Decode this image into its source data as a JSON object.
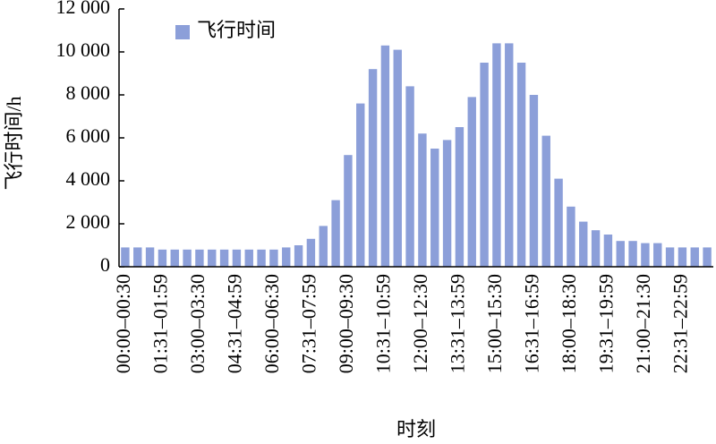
{
  "chart_data": {
    "type": "bar",
    "y_label": "飞行时间/h",
    "x_label": "时刻",
    "categories": [
      "00:00–00:30",
      null,
      null,
      "01:31–01:59",
      null,
      null,
      "03:00–03:30",
      null,
      null,
      "04:31–04:59",
      null,
      null,
      "06:00–06:30",
      null,
      null,
      "07:31–07:59",
      null,
      null,
      "09:00–09:30",
      null,
      null,
      "10:31–10:59",
      null,
      null,
      "12:00–12:30",
      null,
      null,
      "13:31–13:59",
      null,
      null,
      "15:00–15:30",
      null,
      null,
      "16:31–16:59",
      null,
      null,
      "18:00–18:30",
      null,
      null,
      "19:31–19:59",
      null,
      null,
      "21:00–21:30",
      null,
      null,
      "22:31–22:59",
      null,
      null
    ],
    "series": [
      {
        "name": "飞行时间",
        "color": "#8c9fd9",
        "values": [
          900,
          900,
          900,
          800,
          800,
          800,
          800,
          800,
          800,
          800,
          800,
          800,
          800,
          900,
          1000,
          1300,
          1900,
          3100,
          5200,
          7600,
          9200,
          10300,
          10100,
          8400,
          6200,
          5500,
          5900,
          6500,
          7900,
          9500,
          10400,
          10400,
          9500,
          8000,
          6100,
          4100,
          2800,
          2100,
          1700,
          1500,
          1200,
          1200,
          1100,
          1100,
          900,
          900,
          900,
          900
        ]
      }
    ],
    "ylim": [
      0,
      12000
    ],
    "yticks": [
      0,
      {
        "value": 2000,
        "label": "2 000"
      },
      {
        "value": 4000,
        "label": "4 000"
      },
      {
        "value": 6000,
        "label": "6 000"
      },
      {
        "value": 8000,
        "label": "8 000"
      },
      {
        "value": 10000,
        "label": "10 000"
      },
      {
        "value": 12000,
        "label": "12 000"
      }
    ],
    "legend": "upper left"
  }
}
